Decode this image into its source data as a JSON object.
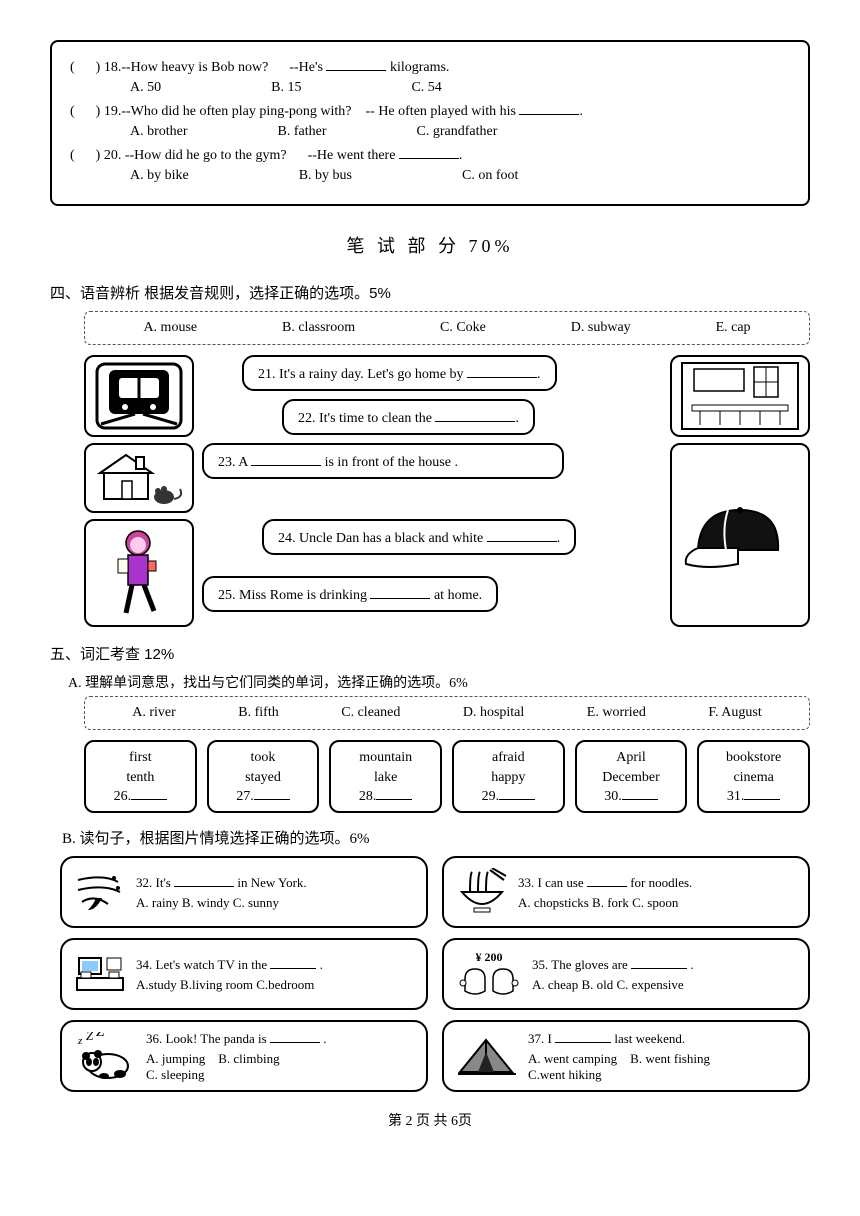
{
  "box_questions": {
    "q18": {
      "prefix": "(",
      "text_a": ") 18.--How heavy is Bob now?",
      "text_b": "--He's",
      "text_c": "kilograms.",
      "optA": "A. 50",
      "optB": "B. 15",
      "optC": "C. 54"
    },
    "q19": {
      "prefix": "(",
      "text_a": ") 19.--Who did he often play ping-pong with?",
      "text_b": "-- He often played with his",
      "optA": "A. brother",
      "optB": "B. father",
      "optC": "C. grandfather"
    },
    "q20": {
      "prefix": "(",
      "text_a": ") 20. --How did he go to the gym?",
      "text_b": "--He went there",
      "optA": "A. by bike",
      "optB": "B. by bus",
      "optC": "C. on foot"
    }
  },
  "section_title": "笔 试 部 分 70%",
  "sec4": {
    "heading": "四、语音辨析 根据发音规则，选择正确的选项。5%",
    "optA": "A. mouse",
    "optB": "B. classroom",
    "optC": "C. Coke",
    "optD": "D. subway",
    "optE": "E. cap",
    "s21": "21. It's a rainy day. Let's go home by",
    "s22": "22. It's time to clean the",
    "s23a": "23. A",
    "s23b": "is in front of the house .",
    "s24": "24. Uncle Dan has a black and white",
    "s25a": "25. Miss Rome is drinking",
    "s25b": "at home."
  },
  "sec5": {
    "heading": "五、词汇考查 12%",
    "Atitle": "A. 理解单词意思，找出与它们同类的单词，选择正确的选项。6%",
    "optA": "A. river",
    "optB": "B. fifth",
    "optC": "C. cleaned",
    "optD": "D. hospital",
    "optE": "E. worried",
    "optF": "F. August",
    "cells": [
      {
        "w1": "first",
        "w2": "tenth",
        "num": "26."
      },
      {
        "w1": "took",
        "w2": "stayed",
        "num": "27."
      },
      {
        "w1": "mountain",
        "w2": "lake",
        "num": "28."
      },
      {
        "w1": "afraid",
        "w2": "happy",
        "num": "29."
      },
      {
        "w1": "April",
        "w2": "December",
        "num": "30."
      },
      {
        "w1": "bookstore",
        "w2": "cinema",
        "num": "31."
      }
    ],
    "Btitle": "B. 读句子，根据图片情境选择正确的选项。6%",
    "q32": {
      "text": "32. It's",
      "tail": "in New York.",
      "opts": "A. rainy   B. windy   C. sunny"
    },
    "q33": {
      "text": "33. I can use",
      "tail": "for noodles.",
      "opts": "A. chopsticks   B. fork   C. spoon"
    },
    "q34": {
      "text": "34. Let's watch TV in the",
      "tail": ".",
      "opts": "A.study   B.living room   C.bedroom"
    },
    "q35": {
      "pre": "¥ 200",
      "text": "35. The gloves are",
      "tail": ".",
      "opts": "A. cheap   B. old   C. expensive"
    },
    "q36": {
      "text": "36. Look! The panda is",
      "tail": ".",
      "optsA": "A. jumping",
      "optsB": "B. climbing",
      "optsC": "C. sleeping"
    },
    "q37": {
      "text": "37. I",
      "tail": "last weekend.",
      "optsA": "A. went camping",
      "optsB": "B. went fishing",
      "optsC": "C.went hiking"
    }
  },
  "footer": "第 2 页 共 6页"
}
